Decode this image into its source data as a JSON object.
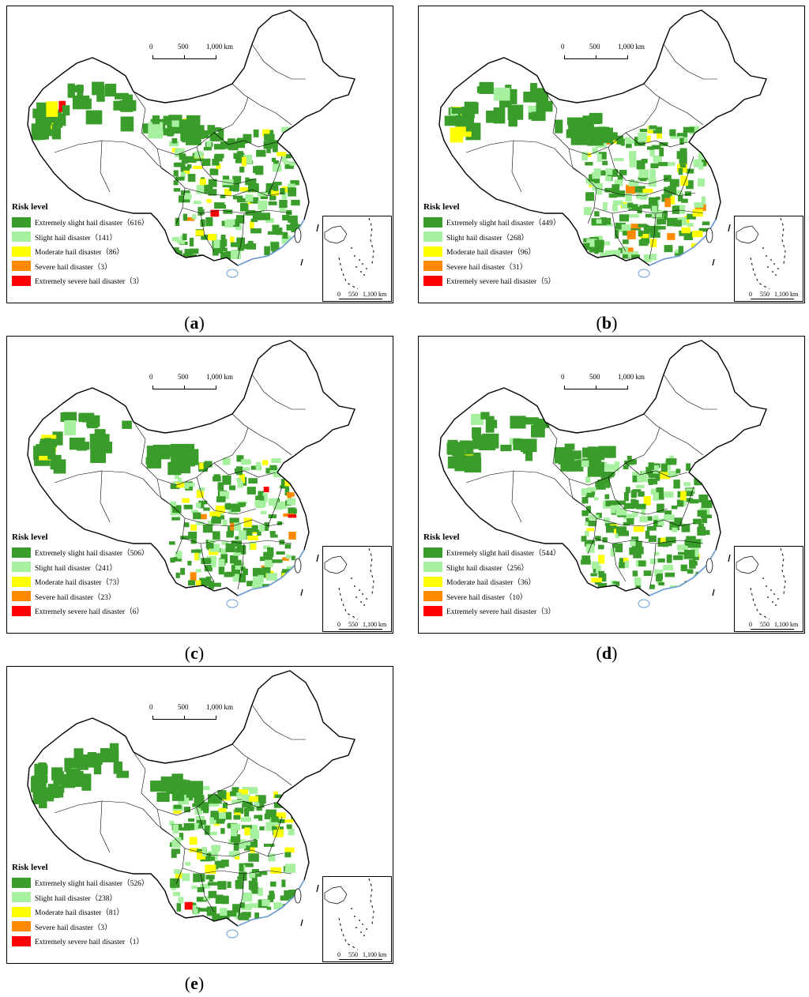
{
  "legend_title": "Risk level",
  "main_scale": {
    "zero": "0",
    "mid": "500",
    "max": "1,000 km"
  },
  "inset_scale": {
    "zero": "0",
    "mid": "550",
    "max": "1,100 km"
  },
  "colors": {
    "extremely_slight": "#3a9c2a",
    "slight": "#a6f0a0",
    "moderate": "#ffff00",
    "severe": "#ff8a00",
    "extremely_severe": "#ff0000",
    "boundary": "#000000",
    "coast": "#6f9fd8"
  },
  "panels": [
    {
      "caption_open": "(",
      "caption_letter": "a",
      "caption_close": ")",
      "legend": [
        {
          "label": "Extremely slight hail disaster（616）",
          "color": "#3a9c2a"
        },
        {
          "label": "Slight hail disaster（141）",
          "color": "#a6f0a0"
        },
        {
          "label": "Moderate hail disaster（86）",
          "color": "#ffff00"
        },
        {
          "label": "Severe hail disaster（3）",
          "color": "#ff8a00"
        },
        {
          "label": "Extremely severe hail disaster（3）",
          "color": "#ff0000"
        }
      ]
    },
    {
      "caption_open": "(",
      "caption_letter": "b",
      "caption_close": ")",
      "legend": [
        {
          "label": "Extremely slight hail disaster（449）",
          "color": "#3a9c2a"
        },
        {
          "label": "Slight hail disaster（268）",
          "color": "#a6f0a0"
        },
        {
          "label": "Moderate hail disaster（96）",
          "color": "#ffff00"
        },
        {
          "label": "Severe hail disaster（31）",
          "color": "#ff8a00"
        },
        {
          "label": "Extremely severe hail disaster（5）",
          "color": "#ff0000"
        }
      ]
    },
    {
      "caption_open": "(",
      "caption_letter": "c",
      "caption_close": ")",
      "legend": [
        {
          "label": "Extremely slight hail disaster（506）",
          "color": "#3a9c2a"
        },
        {
          "label": "Slight hail disaster（241）",
          "color": "#a6f0a0"
        },
        {
          "label": "Moderate hail disaster（73）",
          "color": "#ffff00"
        },
        {
          "label": "Severe hail disaster（23）",
          "color": "#ff8a00"
        },
        {
          "label": "Extremely severe hail disaster（6）",
          "color": "#ff0000"
        }
      ]
    },
    {
      "caption_open": "(",
      "caption_letter": "d",
      "caption_close": ")",
      "legend": [
        {
          "label": "Extremely slight hail disaster（544）",
          "color": "#3a9c2a"
        },
        {
          "label": "Slight hail disaster（256）",
          "color": "#a6f0a0"
        },
        {
          "label": "Moderate hail disaster（36）",
          "color": "#ffff00"
        },
        {
          "label": "Severe hail disaster（10）",
          "color": "#ff8a00"
        },
        {
          "label": "Extremely severe hail disaster（3）",
          "color": "#ff0000"
        }
      ]
    },
    {
      "caption_open": "(",
      "caption_letter": "e",
      "caption_close": ")",
      "legend": [
        {
          "label": "Extremely slight hail disaster（526）",
          "color": "#3a9c2a"
        },
        {
          "label": "Slight hail disaster（238）",
          "color": "#a6f0a0"
        },
        {
          "label": "Moderate hail disaster（81）",
          "color": "#ffff00"
        },
        {
          "label": "Severe hail disaster（3）",
          "color": "#ff8a00"
        },
        {
          "label": "Extremely severe hail disaster（1）",
          "color": "#ff0000"
        }
      ]
    }
  ]
}
